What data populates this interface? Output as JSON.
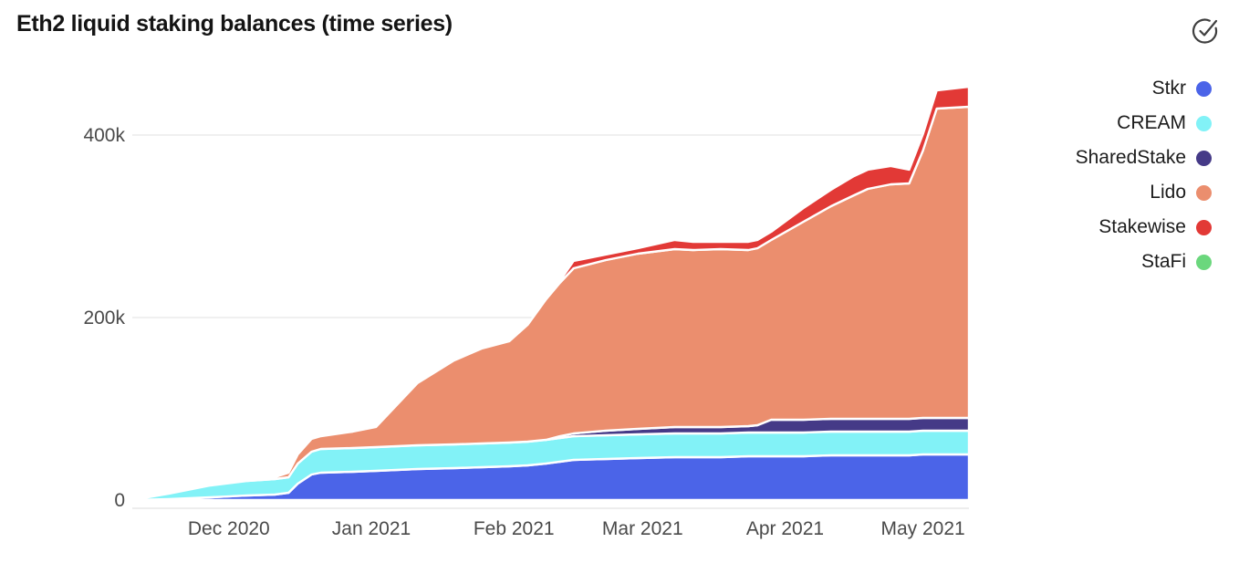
{
  "page": {
    "title": "Eth2 liquid staking balances (time series)"
  },
  "icons": {
    "header": "circle-check"
  },
  "legend": {
    "position": "right",
    "items": [
      {
        "label": "Stkr",
        "color": "#4b64e8"
      },
      {
        "label": "CREAM",
        "color": "#82f2f7"
      },
      {
        "label": "SharedStake",
        "color": "#453a87"
      },
      {
        "label": "Lido",
        "color": "#eb8e6e"
      },
      {
        "label": "Stakewise",
        "color": "#e23936"
      },
      {
        "label": "StaFi",
        "color": "#6bd77d"
      }
    ]
  },
  "chart_data": {
    "type": "area",
    "stacked": true,
    "title": "Eth2 liquid staking balances (time series)",
    "values_unit": "ETH, thousands",
    "grid": "horizontal",
    "legend_position": "right",
    "x_domain_days": [
      0,
      182
    ],
    "x_ticks": [
      {
        "label": "Dec 2020",
        "day": 21
      },
      {
        "label": "Jan 2021",
        "day": 52
      },
      {
        "label": "Feb 2021",
        "day": 83
      },
      {
        "label": "Mar 2021",
        "day": 111
      },
      {
        "label": "Apr 2021",
        "day": 142
      },
      {
        "label": "May 2021",
        "day": 172
      }
    ],
    "y_ticks": [
      {
        "label": "0",
        "value": 0
      },
      {
        "label": "200k",
        "value": 200
      },
      {
        "label": "400k",
        "value": 400
      }
    ],
    "y_domain": [
      0,
      458
    ],
    "days": [
      0,
      8,
      17,
      25,
      31,
      34,
      36,
      39,
      41,
      48,
      53,
      62,
      70,
      76,
      82,
      86,
      90,
      93,
      96,
      103,
      110,
      118,
      122,
      128,
      134,
      136,
      139,
      146,
      152,
      157,
      160,
      165,
      169,
      172,
      175,
      182
    ],
    "series": [
      {
        "name": "Stkr",
        "color": "#4b64e8",
        "values": [
          0,
          1,
          3,
          5,
          6,
          8,
          18,
          28,
          30,
          31,
          32,
          34,
          35,
          36,
          37,
          38,
          40,
          42,
          44,
          45,
          46,
          47,
          47,
          47,
          48,
          48,
          48,
          48,
          49,
          49,
          49,
          49,
          49,
          50,
          50,
          50
        ]
      },
      {
        "name": "CREAM",
        "color": "#82f2f7",
        "values": [
          0,
          6,
          13,
          16,
          17,
          17,
          22,
          25,
          26,
          26,
          26,
          26,
          26,
          26,
          26,
          26,
          26,
          26,
          26,
          26,
          26,
          26,
          26,
          26,
          26,
          26,
          26,
          26,
          26,
          26,
          26,
          26,
          26,
          26,
          26,
          26
        ]
      },
      {
        "name": "SharedStake",
        "color": "#453a87",
        "values": [
          0,
          0,
          0,
          0,
          0,
          0,
          0,
          0,
          0,
          0,
          0,
          0,
          0,
          0,
          0,
          0,
          0,
          2,
          3,
          5,
          6,
          7,
          7,
          7,
          7,
          8,
          14,
          14,
          14,
          14,
          14,
          14,
          14,
          14,
          14,
          14
        ]
      },
      {
        "name": "Lido",
        "color": "#eb8e6e",
        "values": [
          0,
          0,
          0,
          0,
          2,
          5,
          10,
          14,
          14,
          18,
          22,
          68,
          92,
          104,
          111,
          128,
          154,
          168,
          181,
          187,
          192,
          195,
          194,
          195,
          193,
          194,
          197,
          217,
          233,
          245,
          252,
          257,
          258,
          293,
          339,
          341
        ]
      },
      {
        "name": "Stakewise",
        "color": "#e23936",
        "values": [
          0,
          0,
          0,
          0,
          0,
          0,
          0,
          0,
          0,
          0,
          0,
          0,
          0,
          0,
          0,
          0,
          0,
          2,
          8,
          6,
          6,
          10,
          9,
          8,
          9,
          9,
          9,
          15,
          18,
          21,
          21,
          20,
          15,
          18,
          20,
          22
        ]
      },
      {
        "name": "StaFi",
        "color": "#6bd77d",
        "values": [
          0,
          0,
          0,
          0,
          0,
          0,
          0,
          0,
          0,
          0,
          0,
          0,
          0,
          0,
          0,
          0,
          0,
          0,
          0,
          0,
          0,
          0,
          0,
          0,
          0,
          0,
          0,
          0,
          0,
          0,
          0,
          0,
          0,
          0,
          0,
          0
        ]
      }
    ]
  }
}
